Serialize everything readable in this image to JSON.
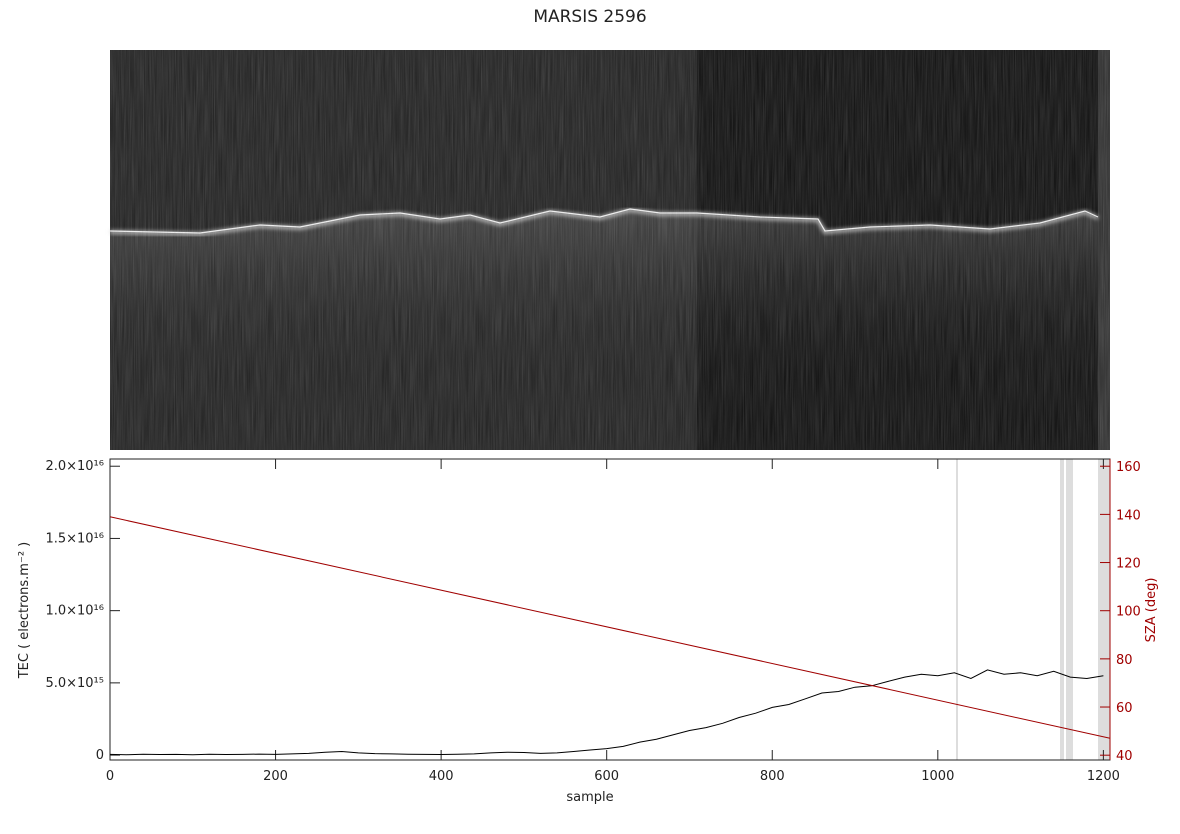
{
  "chart_data": {
    "type": "line",
    "title": "MARSIS 2596",
    "x_label": "sample",
    "y_label": "TEC ( electrons.m⁻² )",
    "y2_label": "SZA (deg)",
    "xlim": [
      0,
      1208
    ],
    "xticks": [
      0,
      200,
      400,
      600,
      800,
      1000,
      1200
    ],
    "ylim": [
      -340000000000000.0,
      2.05e+16
    ],
    "yticks": [
      0,
      {
        "value": 5000000000000000.0,
        "label": "5.0×10¹⁵"
      },
      {
        "value": 1e+16,
        "label": "1.0×10¹⁶"
      },
      {
        "value": 1.5e+16,
        "label": "1.5×10¹⁶"
      },
      {
        "value": 2e+16,
        "label": "2.0×10¹⁶"
      }
    ],
    "y2lim": [
      38,
      163
    ],
    "y2ticks": [
      40,
      60,
      80,
      100,
      120,
      140,
      160
    ],
    "y2color": "#a00000",
    "series": [
      {
        "color": "#000000",
        "x": [
          0,
          20,
          40,
          60,
          80,
          100,
          120,
          140,
          160,
          180,
          200,
          220,
          240,
          260,
          280,
          300,
          320,
          340,
          360,
          380,
          400,
          420,
          440,
          460,
          480,
          500,
          520,
          540,
          560,
          580,
          600,
          620,
          640,
          660,
          680,
          700,
          720,
          740,
          760,
          780,
          800,
          820,
          840,
          860,
          880,
          900,
          920,
          940,
          960,
          980,
          1000,
          1020,
          1040,
          1060,
          1080,
          1100,
          1120,
          1140,
          1160,
          1180,
          1200
        ],
        "values": [
          50000000000000.0,
          30000000000000.0,
          60000000000000.0,
          40000000000000.0,
          50000000000000.0,
          30000000000000.0,
          60000000000000.0,
          40000000000000.0,
          50000000000000.0,
          70000000000000.0,
          50000000000000.0,
          80000000000000.0,
          120000000000000.0,
          200000000000000.0,
          250000000000000.0,
          150000000000000.0,
          100000000000000.0,
          80000000000000.0,
          60000000000000.0,
          50000000000000.0,
          40000000000000.0,
          60000000000000.0,
          80000000000000.0,
          150000000000000.0,
          200000000000000.0,
          180000000000000.0,
          120000000000000.0,
          150000000000000.0,
          250000000000000.0,
          350000000000000.0,
          450000000000000.0,
          600000000000000.0,
          900000000000000.0,
          1100000000000000.0,
          1400000000000000.0,
          1700000000000000.0,
          1900000000000000.0,
          2200000000000000.0,
          2600000000000000.0,
          2900000000000000.0,
          3300000000000000.0,
          3500000000000000.0,
          3900000000000000.0,
          4300000000000000.0,
          4400000000000000.0,
          4700000000000000.0,
          4800000000000000.0,
          5100000000000000.0,
          5400000000000000.0,
          5600000000000000.0,
          5500000000000000.0,
          5700000000000000.0,
          5300000000000000.0,
          5900000000000000.0,
          5600000000000000.0,
          5700000000000000.0,
          5500000000000000.0,
          5800000000000000.0,
          5400000000000000.0,
          5300000000000000.0,
          5500000000000000.0
        ]
      },
      {
        "color": "#a00000",
        "axis": "y2",
        "x": [
          0,
          1208
        ],
        "values": [
          139,
          47
        ]
      }
    ]
  }
}
